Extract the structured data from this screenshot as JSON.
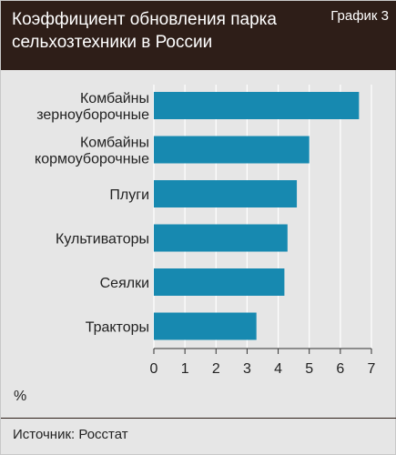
{
  "header": {
    "title_line1": "Коэффициент обновления парка",
    "title_line2": "сельхозтехники в России",
    "badge": "График 3"
  },
  "footer": {
    "unit": "%",
    "source": "Источник: Росстат"
  },
  "colors": {
    "bar": "#1789b0",
    "header_bg": "#2e1e18",
    "plot_bg": "#e6e6e6"
  },
  "chart_data": {
    "type": "bar",
    "orientation": "horizontal",
    "categories": [
      [
        "Комбайны",
        "зерноуборочные"
      ],
      [
        "Комбайны",
        "кормоуборочные"
      ],
      [
        "Плуги"
      ],
      [
        "Культиваторы"
      ],
      [
        "Сеялки"
      ],
      [
        "Тракторы"
      ]
    ],
    "values": [
      6.6,
      5.0,
      4.6,
      4.3,
      4.2,
      3.3
    ],
    "xlim": [
      0,
      7
    ],
    "xticks": [
      "0",
      "1",
      "2",
      "3",
      "4",
      "5",
      "6",
      "7"
    ],
    "grid": "vertical",
    "xlabel": "%"
  }
}
